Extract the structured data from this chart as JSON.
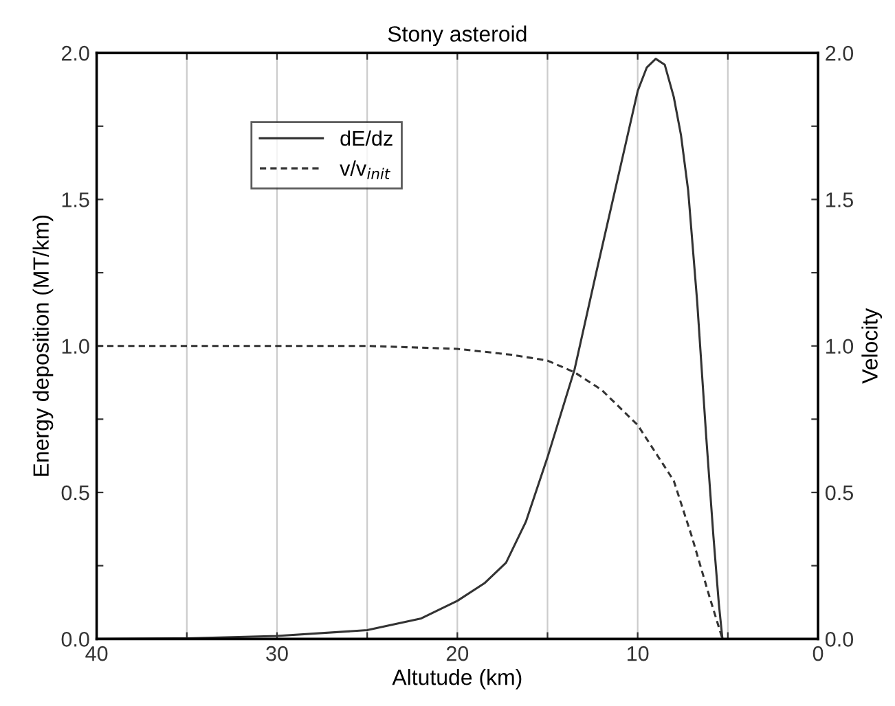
{
  "chart_data": {
    "type": "line",
    "title": "Stony asteroid",
    "xlabel": "Altutude (km)",
    "ylabel": "Energy deposition (MT/km)",
    "y2label": "Velocity",
    "xlim": [
      40,
      0
    ],
    "xticks": [
      40,
      {
        "value": 35,
        "label": null
      },
      30,
      {
        "value": 25,
        "label": null
      },
      20,
      {
        "value": 15,
        "label": null
      },
      10,
      {
        "value": 5,
        "label": null
      },
      0
    ],
    "ylim": [
      0,
      2.0
    ],
    "yticks": [
      {
        "value": 0,
        "label": "0.0"
      },
      {
        "value": 0.25,
        "label": null
      },
      {
        "value": 0.5,
        "label": "0.5"
      },
      {
        "value": 0.75,
        "label": null
      },
      {
        "value": 1.0,
        "label": "1.0"
      },
      {
        "value": 1.25,
        "label": null
      },
      {
        "value": 1.5,
        "label": "1.5"
      },
      {
        "value": 1.75,
        "label": null
      },
      {
        "value": 2.0,
        "label": "2.0"
      }
    ],
    "y2lim": [
      0,
      2.0
    ],
    "y2ticks": [
      {
        "value": 0,
        "label": "0.0"
      },
      {
        "value": 0.25,
        "label": null
      },
      {
        "value": 0.5,
        "label": "0.5"
      },
      {
        "value": 0.75,
        "label": null
      },
      {
        "value": 1.0,
        "label": "1.0"
      },
      {
        "value": 1.25,
        "label": null
      },
      {
        "value": 1.5,
        "label": "1.5"
      },
      {
        "value": 1.75,
        "label": null
      },
      {
        "value": 2.0,
        "label": "2.0"
      }
    ],
    "grid": "x",
    "legend": "top left",
    "series": [
      {
        "name": "dE/dz",
        "color": "#333333",
        "line_style": "solid",
        "x": [
          40,
          35,
          30,
          25,
          22,
          20,
          18.5,
          17.3,
          16.2,
          15,
          14.2,
          13.5,
          12.3,
          11,
          10,
          9.5,
          9,
          8.5,
          8,
          7.6,
          7.2,
          6.7,
          6.2,
          5.8,
          5.5,
          5.3
        ],
        "values": [
          0,
          0.002,
          0.01,
          0.03,
          0.07,
          0.13,
          0.19,
          0.26,
          0.4,
          0.62,
          0.78,
          0.92,
          1.25,
          1.6,
          1.87,
          1.95,
          1.98,
          1.96,
          1.85,
          1.72,
          1.53,
          1.15,
          0.69,
          0.35,
          0.12,
          0
        ]
      },
      {
        "name": "v/v$_{init}$",
        "color": "#333333",
        "line_style": "dashed",
        "axis": "y2",
        "x": [
          40,
          30,
          25,
          20,
          17,
          15,
          13.5,
          12,
          10,
          8,
          7,
          6,
          5.3
        ],
        "values": [
          1.0,
          1.0,
          1.0,
          0.99,
          0.97,
          0.95,
          0.91,
          0.85,
          0.73,
          0.54,
          0.35,
          0.14,
          0
        ]
      }
    ]
  }
}
